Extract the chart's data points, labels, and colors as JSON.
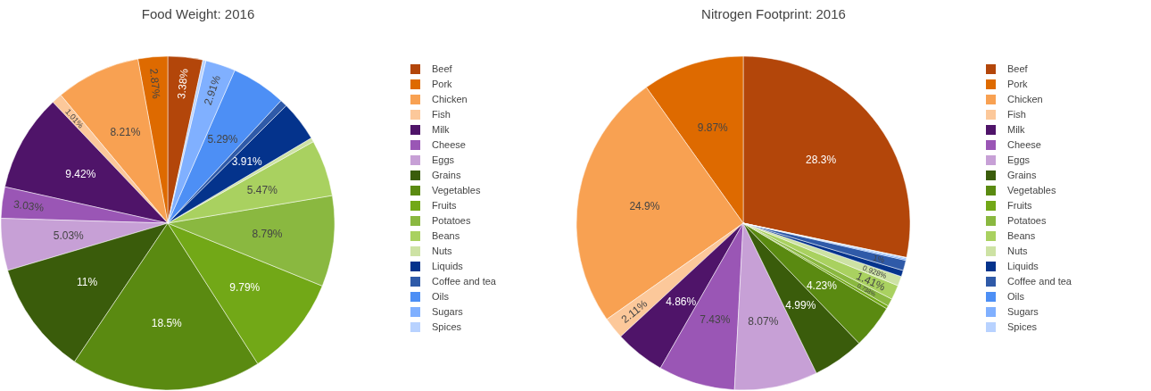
{
  "chart_data": [
    {
      "type": "pie",
      "title": "Food Weight: 2016",
      "legend": "right",
      "categories": [
        "Beef",
        "Pork",
        "Chicken",
        "Fish",
        "Milk",
        "Cheese",
        "Eggs",
        "Grains",
        "Vegetables",
        "Fruits",
        "Potatoes",
        "Beans",
        "Nuts",
        "Liquids",
        "Coffee and tea",
        "Oils",
        "Sugars",
        "Spices"
      ],
      "values": [
        3.38,
        2.87,
        8.21,
        1.01,
        9.42,
        3.03,
        5.03,
        11,
        18.5,
        9.79,
        8.79,
        5.47,
        0.4,
        3.91,
        0.7,
        5.29,
        2.91,
        0.29
      ],
      "value_labels": [
        "3.38%",
        "2.87%",
        "8.21%",
        "1.01%",
        "9.42%",
        "3.03%",
        "5.03%",
        "11%",
        "18.5%",
        "9.79%",
        "8.79%",
        "5.47%",
        null,
        "3.91%",
        null,
        "5.29%",
        "2.91%",
        null
      ],
      "colors": [
        "#b3460a",
        "#de6a00",
        "#f8a152",
        "#fcc89a",
        "#4f1469",
        "#9a56b5",
        "#c7a0d6",
        "#3a5c0b",
        "#5a8a11",
        "#72a817",
        "#8ab840",
        "#a9d160",
        "#cde2a4",
        "#04338c",
        "#2f5aa8",
        "#4d8ff5",
        "#80b0ff",
        "#b8d2ff"
      ]
    },
    {
      "type": "pie",
      "title": "Nitrogen Footprint: 2016",
      "legend": "right",
      "categories": [
        "Beef",
        "Pork",
        "Chicken",
        "Fish",
        "Milk",
        "Cheese",
        "Eggs",
        "Grains",
        "Vegetables",
        "Fruits",
        "Potatoes",
        "Beans",
        "Nuts",
        "Liquids",
        "Coffee and tea",
        "Oils",
        "Sugars",
        "Spices"
      ],
      "values": [
        28.3,
        9.87,
        24.9,
        2.11,
        4.86,
        7.43,
        8.07,
        4.99,
        4.23,
        0.3,
        0.738,
        1.41,
        0.928,
        0.6,
        1,
        0.12,
        0.12,
        0.04
      ],
      "value_labels": [
        "28.3%",
        "9.87%",
        "24.9%",
        "2.11%",
        "4.86%",
        "7.43%",
        "8.07%",
        "4.99%",
        "4.23%",
        null,
        "0.738%",
        "1.41%",
        "0.928%",
        null,
        "1%",
        null,
        null,
        null
      ],
      "colors": [
        "#b3460a",
        "#de6a00",
        "#f8a152",
        "#fcc89a",
        "#4f1469",
        "#9a56b5",
        "#c7a0d6",
        "#3a5c0b",
        "#5a8a11",
        "#72a817",
        "#8ab840",
        "#a9d160",
        "#cde2a4",
        "#04338c",
        "#2f5aa8",
        "#4d8ff5",
        "#80b0ff",
        "#b8d2ff"
      ]
    }
  ]
}
